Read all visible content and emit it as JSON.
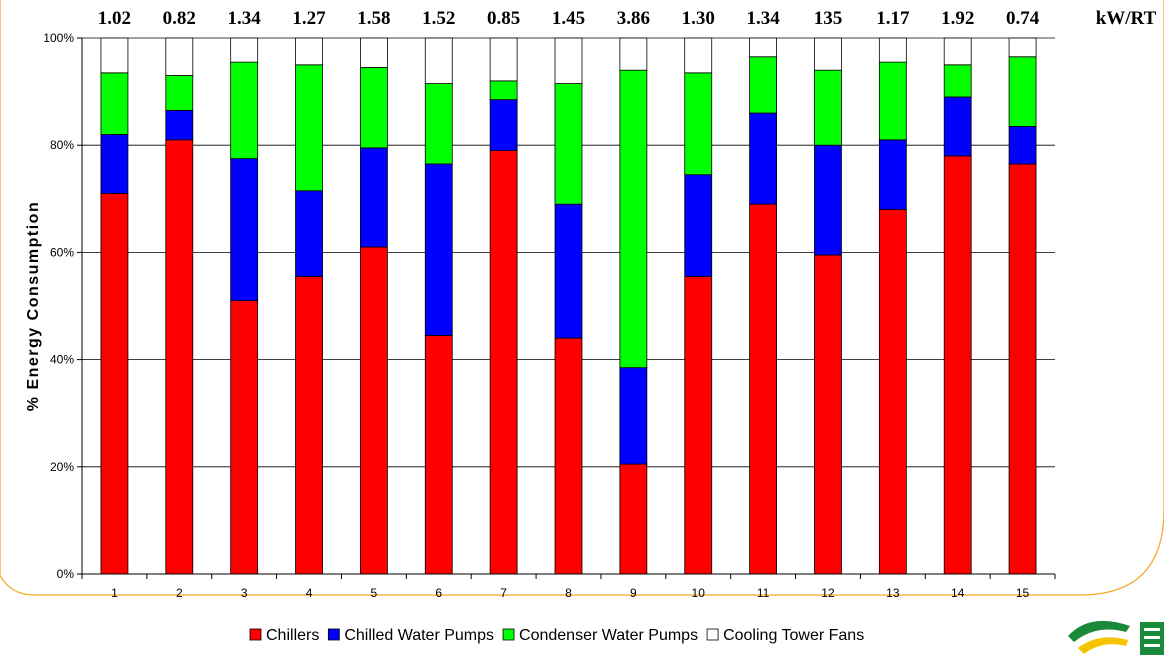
{
  "chart_data": {
    "type": "bar",
    "stacked": true,
    "categories": [
      "1",
      "2",
      "3",
      "4",
      "5",
      "6",
      "7",
      "8",
      "9",
      "10",
      "11",
      "12",
      "13",
      "14",
      "15"
    ],
    "series": [
      {
        "name": "Chillers",
        "color": "#ff0000",
        "values": [
          71,
          81,
          51,
          55.5,
          61,
          44.5,
          79,
          44,
          20.5,
          55.5,
          69,
          59.5,
          68,
          78,
          76.5
        ]
      },
      {
        "name": "Chilled Water Pumps",
        "color": "#0000ff",
        "values": [
          11,
          5.5,
          26.5,
          16,
          18.5,
          32,
          9.5,
          25,
          18,
          19,
          17,
          20.5,
          13,
          11,
          7
        ]
      },
      {
        "name": "Condenser Water Pumps",
        "color": "#00ff00",
        "values": [
          11.5,
          6.5,
          18,
          23.5,
          15,
          15,
          3.5,
          22.5,
          55.5,
          19,
          10.5,
          14,
          14.5,
          6,
          13
        ]
      },
      {
        "name": "Cooling Tower Fans",
        "color": "#ffffff",
        "values": [
          6.5,
          7,
          4.5,
          5,
          5.5,
          8.5,
          8,
          8.5,
          6,
          6.5,
          3.5,
          6,
          4.5,
          5,
          3.5
        ]
      }
    ],
    "top_labels": [
      "1.02",
      "0.82",
      "1.34",
      "1.27",
      "1.58",
      "1.52",
      "0.85",
      "1.45",
      "3.86",
      "1.30",
      "1.34",
      "135",
      "1.17",
      "1.92",
      "0.74"
    ],
    "top_labels_unit": "kW/RT",
    "ylabel": "% Energy Consumption",
    "ylim": [
      0,
      100
    ],
    "y_ticks": [
      "0%",
      "20%",
      "40%",
      "60%",
      "80%",
      "100%"
    ],
    "grid": true,
    "legend_position": "bottom",
    "frame_color": "#f5a623"
  }
}
